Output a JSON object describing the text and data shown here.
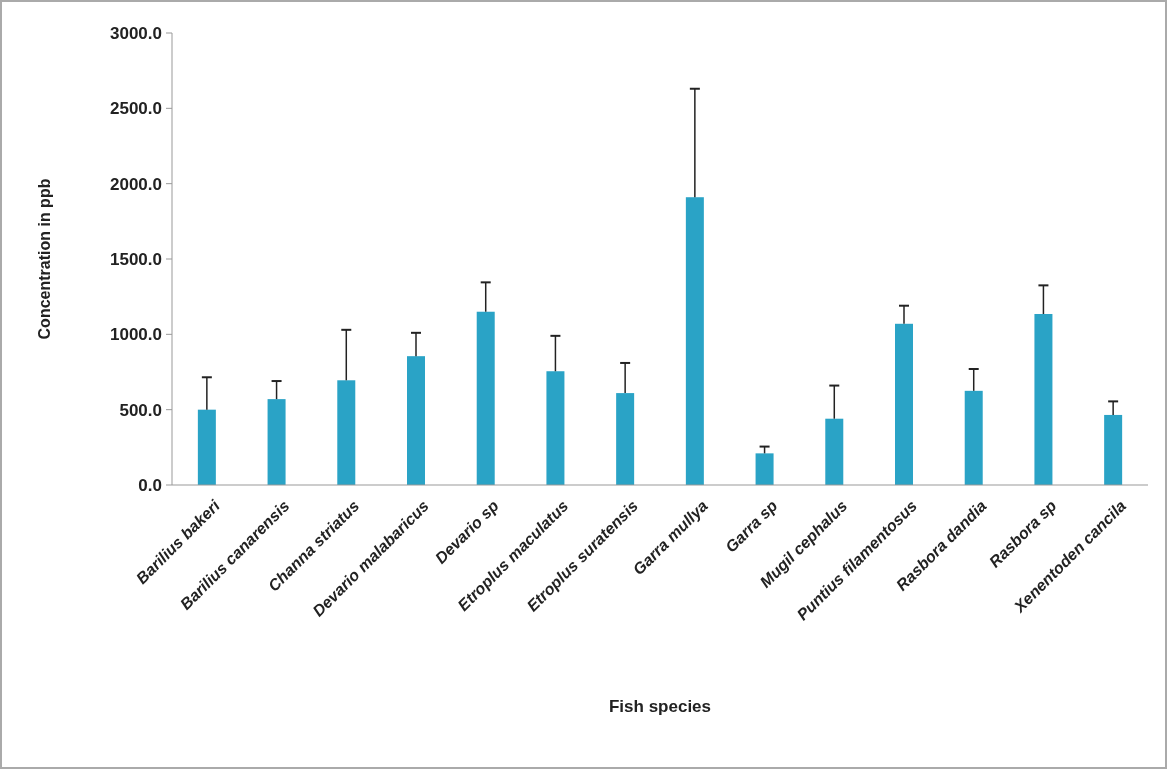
{
  "chart_data": {
    "type": "bar",
    "xlabel": "Fish species",
    "ylabel": "Concentration in ppb",
    "categories": [
      "Barilius bakeri",
      "Barilius canarensis",
      "Channa striatus",
      "Devario malabaricus",
      "Devario sp",
      "Etroplus maculatus",
      "Etroplus suratensis",
      "Garra mullya",
      "Garra sp",
      "Mugil cephalus",
      "Puntius filamentosus",
      "Rasbora dandia",
      "Rasbora sp",
      "Xenentoden cancila"
    ],
    "values": [
      500,
      570,
      695,
      855,
      1150,
      755,
      610,
      1910,
      210,
      440,
      1070,
      625,
      1135,
      465
    ],
    "errors": [
      [
        500,
        715
      ],
      [
        570,
        690
      ],
      [
        695,
        1030
      ],
      [
        855,
        1010
      ],
      [
        1150,
        1345
      ],
      [
        755,
        990
      ],
      [
        610,
        810
      ],
      [
        1910,
        2630
      ],
      [
        210,
        255
      ],
      [
        440,
        660
      ],
      [
        1070,
        1190
      ],
      [
        625,
        770
      ],
      [
        1135,
        1325
      ],
      [
        465,
        555
      ]
    ],
    "color": "#2aa3c6",
    "ylim": [
      0,
      3000
    ],
    "yticks": [
      {
        "value": 0,
        "label": "0.0"
      },
      {
        "value": 500,
        "label": "500.0"
      },
      {
        "value": 1000,
        "label": "1000.0"
      },
      {
        "value": 1500,
        "label": "1500.0"
      },
      {
        "value": 2000,
        "label": "2000.0"
      },
      {
        "value": 2500,
        "label": "2500.0"
      },
      {
        "value": 3000,
        "label": "3000.0"
      }
    ],
    "grid": false
  }
}
